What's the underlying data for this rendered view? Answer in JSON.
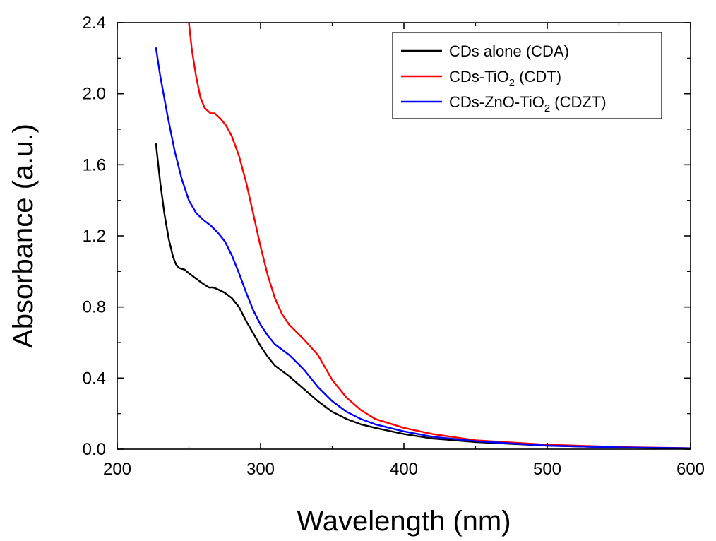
{
  "chart_data": {
    "type": "line",
    "title": "",
    "xlabel": "Wavelength (nm)",
    "ylabel": "Absorbance (a.u.)",
    "xlim": [
      200,
      600
    ],
    "ylim": [
      0.0,
      2.4
    ],
    "x_ticks": [
      200,
      300,
      400,
      500,
      600
    ],
    "x_tick_labels": [
      "200",
      "300",
      "400",
      "500",
      "600"
    ],
    "y_ticks": [
      0.0,
      0.4,
      0.8,
      1.2,
      1.6,
      2.0,
      2.4
    ],
    "y_tick_labels": [
      "0.0",
      "0.4",
      "0.8",
      "1.2",
      "1.6",
      "2.0",
      "2.4"
    ],
    "grid": false,
    "legend_position": "top-right",
    "series": [
      {
        "name": "CDs alone (CDA)",
        "label_parts": [
          "CDs alone (CDA)",
          "",
          ""
        ],
        "color": "#000000",
        "points": [
          [
            227,
            1.72
          ],
          [
            230,
            1.5
          ],
          [
            233,
            1.32
          ],
          [
            236,
            1.18
          ],
          [
            239,
            1.08
          ],
          [
            241,
            1.04
          ],
          [
            243,
            1.02
          ],
          [
            247,
            1.01
          ],
          [
            250,
            0.99
          ],
          [
            255,
            0.96
          ],
          [
            260,
            0.93
          ],
          [
            264,
            0.91
          ],
          [
            267,
            0.91
          ],
          [
            270,
            0.9
          ],
          [
            275,
            0.88
          ],
          [
            280,
            0.85
          ],
          [
            285,
            0.8
          ],
          [
            290,
            0.72
          ],
          [
            295,
            0.65
          ],
          [
            300,
            0.58
          ],
          [
            305,
            0.52
          ],
          [
            310,
            0.47
          ],
          [
            320,
            0.41
          ],
          [
            330,
            0.34
          ],
          [
            340,
            0.27
          ],
          [
            350,
            0.21
          ],
          [
            360,
            0.17
          ],
          [
            370,
            0.14
          ],
          [
            380,
            0.12
          ],
          [
            400,
            0.085
          ],
          [
            420,
            0.06
          ],
          [
            450,
            0.04
          ],
          [
            500,
            0.02
          ],
          [
            550,
            0.01
          ],
          [
            600,
            0.005
          ]
        ]
      },
      {
        "name": "CDs-TiO2 (CDT)",
        "label_parts": [
          "CDs-TiO",
          "2",
          " (CDT)"
        ],
        "color": "#ff0000",
        "points": [
          [
            250,
            2.4
          ],
          [
            252,
            2.25
          ],
          [
            255,
            2.1
          ],
          [
            258,
            1.98
          ],
          [
            261,
            1.92
          ],
          [
            265,
            1.89
          ],
          [
            268,
            1.89
          ],
          [
            272,
            1.86
          ],
          [
            276,
            1.82
          ],
          [
            280,
            1.76
          ],
          [
            285,
            1.65
          ],
          [
            290,
            1.5
          ],
          [
            295,
            1.32
          ],
          [
            300,
            1.14
          ],
          [
            305,
            0.98
          ],
          [
            310,
            0.85
          ],
          [
            315,
            0.76
          ],
          [
            320,
            0.7
          ],
          [
            330,
            0.62
          ],
          [
            340,
            0.53
          ],
          [
            350,
            0.39
          ],
          [
            360,
            0.29
          ],
          [
            370,
            0.22
          ],
          [
            380,
            0.17
          ],
          [
            400,
            0.12
          ],
          [
            420,
            0.085
          ],
          [
            450,
            0.05
          ],
          [
            500,
            0.025
          ],
          [
            550,
            0.012
          ],
          [
            600,
            0.005
          ]
        ]
      },
      {
        "name": "CDs-ZnO-TiO2 (CDZT)",
        "label_parts": [
          "CDs-ZnO-TiO",
          "2",
          " (CDZT)"
        ],
        "color": "#0000ff",
        "points": [
          [
            227,
            2.26
          ],
          [
            230,
            2.1
          ],
          [
            235,
            1.88
          ],
          [
            240,
            1.68
          ],
          [
            245,
            1.52
          ],
          [
            250,
            1.4
          ],
          [
            255,
            1.33
          ],
          [
            260,
            1.29
          ],
          [
            265,
            1.26
          ],
          [
            270,
            1.22
          ],
          [
            275,
            1.17
          ],
          [
            280,
            1.09
          ],
          [
            285,
            0.99
          ],
          [
            290,
            0.88
          ],
          [
            295,
            0.78
          ],
          [
            300,
            0.7
          ],
          [
            305,
            0.64
          ],
          [
            310,
            0.59
          ],
          [
            320,
            0.53
          ],
          [
            330,
            0.45
          ],
          [
            340,
            0.35
          ],
          [
            350,
            0.27
          ],
          [
            360,
            0.21
          ],
          [
            370,
            0.17
          ],
          [
            380,
            0.14
          ],
          [
            400,
            0.1
          ],
          [
            420,
            0.07
          ],
          [
            450,
            0.045
          ],
          [
            500,
            0.02
          ],
          [
            550,
            0.01
          ],
          [
            600,
            0.005
          ]
        ]
      }
    ]
  }
}
